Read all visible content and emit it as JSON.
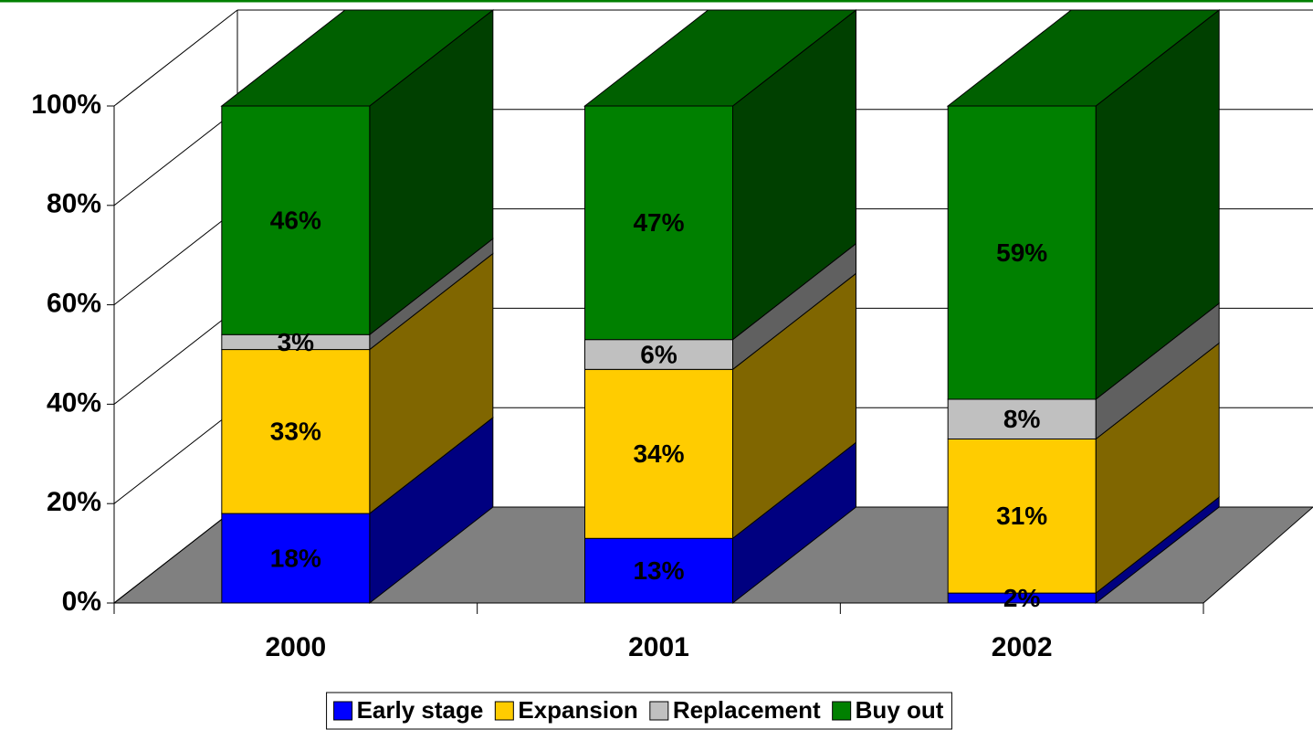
{
  "chart_data": {
    "type": "bar3d_stacked",
    "categories": [
      "2000",
      "2001",
      "2002"
    ],
    "series": [
      {
        "name": "Early stage",
        "color": "#0000ff",
        "values": [
          18,
          13,
          2
        ],
        "value_labels": [
          "18%",
          "13%",
          "2%"
        ]
      },
      {
        "name": "Expansion",
        "color": "#ffcc00",
        "values": [
          33,
          34,
          31
        ],
        "value_labels": [
          "33%",
          "34%",
          "31%"
        ]
      },
      {
        "name": "Replacement",
        "color": "#c0c0c0",
        "values": [
          3,
          6,
          8
        ],
        "value_labels": [
          "3%",
          "6%",
          "8%"
        ]
      },
      {
        "name": "Buy out",
        "color": "#008000",
        "values": [
          46,
          47,
          59
        ],
        "value_labels": [
          "46%",
          "47%",
          "59%"
        ]
      }
    ],
    "ylim": [
      0,
      100
    ],
    "yticks": [
      {
        "value": 0,
        "label": "0%"
      },
      {
        "value": 20,
        "label": "20%"
      },
      {
        "value": 40,
        "label": "40%"
      },
      {
        "value": 60,
        "label": "60%"
      },
      {
        "value": 80,
        "label": "80%"
      },
      {
        "value": 100,
        "label": "100%"
      }
    ],
    "grid": true,
    "legend": "bottom"
  }
}
